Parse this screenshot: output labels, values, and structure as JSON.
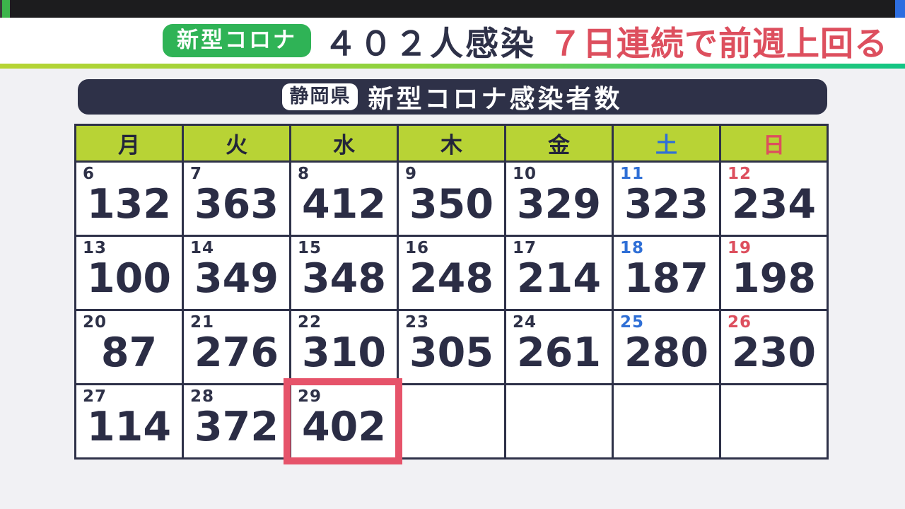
{
  "top_banner": {
    "badge_label": "新型コロナ",
    "headline_main": "４０２人感染",
    "headline_trend": "７日連続で前週上回る"
  },
  "title_bar": {
    "prefecture_badge": "静岡県",
    "title": "新型コロナ感染者数"
  },
  "chart_data": {
    "type": "table",
    "title": "静岡県 新型コロナ感染者数",
    "weekday_columns": [
      "月",
      "火",
      "水",
      "木",
      "金",
      "土",
      "日"
    ],
    "weeks": [
      [
        {
          "day": 6,
          "value": 132
        },
        {
          "day": 7,
          "value": 363
        },
        {
          "day": 8,
          "value": 412
        },
        {
          "day": 9,
          "value": 350
        },
        {
          "day": 10,
          "value": 329
        },
        {
          "day": 11,
          "value": 323
        },
        {
          "day": 12,
          "value": 234
        }
      ],
      [
        {
          "day": 13,
          "value": 100
        },
        {
          "day": 14,
          "value": 349
        },
        {
          "day": 15,
          "value": 348
        },
        {
          "day": 16,
          "value": 248
        },
        {
          "day": 17,
          "value": 214
        },
        {
          "day": 18,
          "value": 187
        },
        {
          "day": 19,
          "value": 198
        }
      ],
      [
        {
          "day": 20,
          "value": 87
        },
        {
          "day": 21,
          "value": 276
        },
        {
          "day": 22,
          "value": 310
        },
        {
          "day": 23,
          "value": 305
        },
        {
          "day": 24,
          "value": 261
        },
        {
          "day": 25,
          "value": 280
        },
        {
          "day": 26,
          "value": 230
        }
      ],
      [
        {
          "day": 27,
          "value": 114
        },
        {
          "day": 28,
          "value": 372
        },
        {
          "day": 29,
          "value": 402
        },
        null,
        null,
        null,
        null
      ]
    ],
    "highlighted_day": 29,
    "highlighted_value": 402,
    "saturday_column_index": 5,
    "sunday_column_index": 6
  },
  "colors": {
    "navy": "#2e3148",
    "value_text": "#2b2d45",
    "header_green": "#b8d335",
    "badge_green": "#2fb356",
    "saturday_blue": "#2f6fd6",
    "sunday_red": "#dd4f5e",
    "headline_red": "#dd4f5e",
    "highlight_ring_red": "#e6536a",
    "gradient_start": "#b7d434",
    "gradient_end": "#12c584",
    "top_bar_dark": "#1c1c1e",
    "page_background": "#f1f1f4"
  }
}
